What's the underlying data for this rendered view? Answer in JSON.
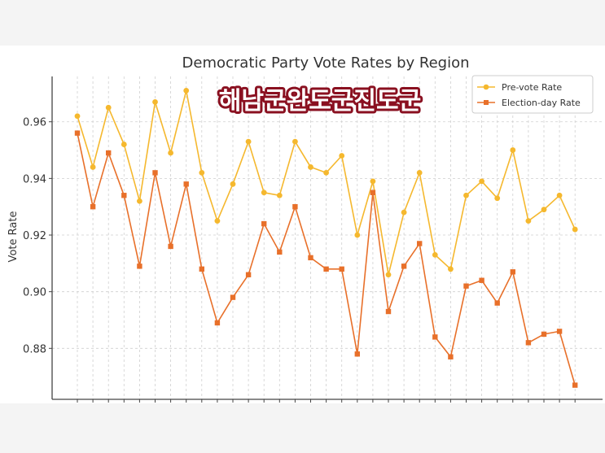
{
  "chart_data": {
    "type": "line",
    "title": "Democratic Party Vote Rates by Region",
    "xlabel": "",
    "ylabel": "Vote Rate",
    "ylim": [
      0.862,
      0.976
    ],
    "yticks": [
      "0.88",
      "0.90",
      "0.92",
      "0.94",
      "0.96"
    ],
    "ytick_values": [
      0.88,
      0.9,
      0.92,
      0.94,
      0.96
    ],
    "grid": true,
    "legend_position": "top-right",
    "overlay_text": "해남군완도군진도군",
    "series": [
      {
        "name": "Pre-vote Rate",
        "color": "#f5b82e",
        "marker": "circle",
        "values": [
          0.962,
          0.944,
          0.965,
          0.952,
          0.932,
          0.967,
          0.949,
          0.971,
          0.942,
          0.925,
          0.938,
          0.953,
          0.935,
          0.934,
          0.953,
          0.944,
          0.942,
          0.948,
          0.92,
          0.939,
          0.906,
          0.928,
          0.942,
          0.913,
          0.908,
          0.934,
          0.939,
          0.933,
          0.95,
          0.925,
          0.929,
          0.934,
          0.922
        ]
      },
      {
        "name": "Election-day Rate",
        "color": "#e8702a",
        "marker": "square",
        "values": [
          0.956,
          0.93,
          0.949,
          0.934,
          0.909,
          0.942,
          0.916,
          0.938,
          0.908,
          0.889,
          0.898,
          0.906,
          0.924,
          0.914,
          0.93,
          0.912,
          0.908,
          0.908,
          0.878,
          0.935,
          0.893,
          0.909,
          0.917,
          0.884,
          0.877,
          0.902,
          0.904,
          0.896,
          0.907,
          0.882,
          0.885,
          0.886,
          0.867
        ]
      }
    ]
  }
}
